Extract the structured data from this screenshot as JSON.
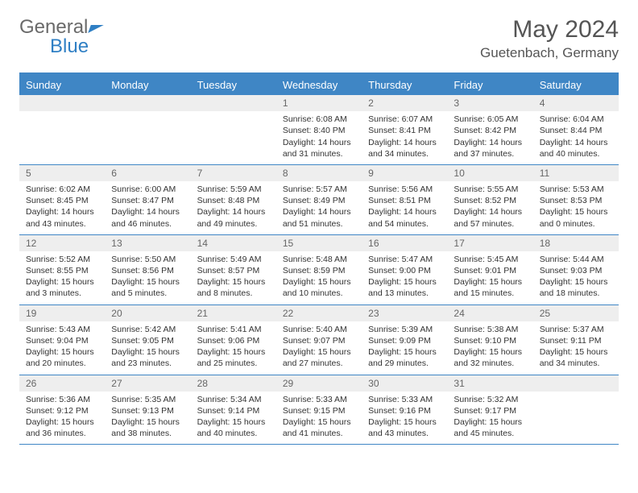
{
  "logo": {
    "part1": "General",
    "part2": "Blue"
  },
  "title": "May 2024",
  "location": "Guetenbach, Germany",
  "dayNames": [
    "Sunday",
    "Monday",
    "Tuesday",
    "Wednesday",
    "Thursday",
    "Friday",
    "Saturday"
  ],
  "style": {
    "accent": "#3f86c5",
    "numBg": "#eeeeee",
    "text": "#333333",
    "columns": 7,
    "cell_fontsize": 10.5,
    "header_fontsize": 13
  },
  "weeks": [
    [
      {
        "n": "",
        "empty": true
      },
      {
        "n": "",
        "empty": true
      },
      {
        "n": "",
        "empty": true
      },
      {
        "n": "1",
        "sunrise": "Sunrise: 6:08 AM",
        "sunset": "Sunset: 8:40 PM",
        "day1": "Daylight: 14 hours",
        "day2": "and 31 minutes."
      },
      {
        "n": "2",
        "sunrise": "Sunrise: 6:07 AM",
        "sunset": "Sunset: 8:41 PM",
        "day1": "Daylight: 14 hours",
        "day2": "and 34 minutes."
      },
      {
        "n": "3",
        "sunrise": "Sunrise: 6:05 AM",
        "sunset": "Sunset: 8:42 PM",
        "day1": "Daylight: 14 hours",
        "day2": "and 37 minutes."
      },
      {
        "n": "4",
        "sunrise": "Sunrise: 6:04 AM",
        "sunset": "Sunset: 8:44 PM",
        "day1": "Daylight: 14 hours",
        "day2": "and 40 minutes."
      }
    ],
    [
      {
        "n": "5",
        "sunrise": "Sunrise: 6:02 AM",
        "sunset": "Sunset: 8:45 PM",
        "day1": "Daylight: 14 hours",
        "day2": "and 43 minutes."
      },
      {
        "n": "6",
        "sunrise": "Sunrise: 6:00 AM",
        "sunset": "Sunset: 8:47 PM",
        "day1": "Daylight: 14 hours",
        "day2": "and 46 minutes."
      },
      {
        "n": "7",
        "sunrise": "Sunrise: 5:59 AM",
        "sunset": "Sunset: 8:48 PM",
        "day1": "Daylight: 14 hours",
        "day2": "and 49 minutes."
      },
      {
        "n": "8",
        "sunrise": "Sunrise: 5:57 AM",
        "sunset": "Sunset: 8:49 PM",
        "day1": "Daylight: 14 hours",
        "day2": "and 51 minutes."
      },
      {
        "n": "9",
        "sunrise": "Sunrise: 5:56 AM",
        "sunset": "Sunset: 8:51 PM",
        "day1": "Daylight: 14 hours",
        "day2": "and 54 minutes."
      },
      {
        "n": "10",
        "sunrise": "Sunrise: 5:55 AM",
        "sunset": "Sunset: 8:52 PM",
        "day1": "Daylight: 14 hours",
        "day2": "and 57 minutes."
      },
      {
        "n": "11",
        "sunrise": "Sunrise: 5:53 AM",
        "sunset": "Sunset: 8:53 PM",
        "day1": "Daylight: 15 hours",
        "day2": "and 0 minutes."
      }
    ],
    [
      {
        "n": "12",
        "sunrise": "Sunrise: 5:52 AM",
        "sunset": "Sunset: 8:55 PM",
        "day1": "Daylight: 15 hours",
        "day2": "and 3 minutes."
      },
      {
        "n": "13",
        "sunrise": "Sunrise: 5:50 AM",
        "sunset": "Sunset: 8:56 PM",
        "day1": "Daylight: 15 hours",
        "day2": "and 5 minutes."
      },
      {
        "n": "14",
        "sunrise": "Sunrise: 5:49 AM",
        "sunset": "Sunset: 8:57 PM",
        "day1": "Daylight: 15 hours",
        "day2": "and 8 minutes."
      },
      {
        "n": "15",
        "sunrise": "Sunrise: 5:48 AM",
        "sunset": "Sunset: 8:59 PM",
        "day1": "Daylight: 15 hours",
        "day2": "and 10 minutes."
      },
      {
        "n": "16",
        "sunrise": "Sunrise: 5:47 AM",
        "sunset": "Sunset: 9:00 PM",
        "day1": "Daylight: 15 hours",
        "day2": "and 13 minutes."
      },
      {
        "n": "17",
        "sunrise": "Sunrise: 5:45 AM",
        "sunset": "Sunset: 9:01 PM",
        "day1": "Daylight: 15 hours",
        "day2": "and 15 minutes."
      },
      {
        "n": "18",
        "sunrise": "Sunrise: 5:44 AM",
        "sunset": "Sunset: 9:03 PM",
        "day1": "Daylight: 15 hours",
        "day2": "and 18 minutes."
      }
    ],
    [
      {
        "n": "19",
        "sunrise": "Sunrise: 5:43 AM",
        "sunset": "Sunset: 9:04 PM",
        "day1": "Daylight: 15 hours",
        "day2": "and 20 minutes."
      },
      {
        "n": "20",
        "sunrise": "Sunrise: 5:42 AM",
        "sunset": "Sunset: 9:05 PM",
        "day1": "Daylight: 15 hours",
        "day2": "and 23 minutes."
      },
      {
        "n": "21",
        "sunrise": "Sunrise: 5:41 AM",
        "sunset": "Sunset: 9:06 PM",
        "day1": "Daylight: 15 hours",
        "day2": "and 25 minutes."
      },
      {
        "n": "22",
        "sunrise": "Sunrise: 5:40 AM",
        "sunset": "Sunset: 9:07 PM",
        "day1": "Daylight: 15 hours",
        "day2": "and 27 minutes."
      },
      {
        "n": "23",
        "sunrise": "Sunrise: 5:39 AM",
        "sunset": "Sunset: 9:09 PM",
        "day1": "Daylight: 15 hours",
        "day2": "and 29 minutes."
      },
      {
        "n": "24",
        "sunrise": "Sunrise: 5:38 AM",
        "sunset": "Sunset: 9:10 PM",
        "day1": "Daylight: 15 hours",
        "day2": "and 32 minutes."
      },
      {
        "n": "25",
        "sunrise": "Sunrise: 5:37 AM",
        "sunset": "Sunset: 9:11 PM",
        "day1": "Daylight: 15 hours",
        "day2": "and 34 minutes."
      }
    ],
    [
      {
        "n": "26",
        "sunrise": "Sunrise: 5:36 AM",
        "sunset": "Sunset: 9:12 PM",
        "day1": "Daylight: 15 hours",
        "day2": "and 36 minutes."
      },
      {
        "n": "27",
        "sunrise": "Sunrise: 5:35 AM",
        "sunset": "Sunset: 9:13 PM",
        "day1": "Daylight: 15 hours",
        "day2": "and 38 minutes."
      },
      {
        "n": "28",
        "sunrise": "Sunrise: 5:34 AM",
        "sunset": "Sunset: 9:14 PM",
        "day1": "Daylight: 15 hours",
        "day2": "and 40 minutes."
      },
      {
        "n": "29",
        "sunrise": "Sunrise: 5:33 AM",
        "sunset": "Sunset: 9:15 PM",
        "day1": "Daylight: 15 hours",
        "day2": "and 41 minutes."
      },
      {
        "n": "30",
        "sunrise": "Sunrise: 5:33 AM",
        "sunset": "Sunset: 9:16 PM",
        "day1": "Daylight: 15 hours",
        "day2": "and 43 minutes."
      },
      {
        "n": "31",
        "sunrise": "Sunrise: 5:32 AM",
        "sunset": "Sunset: 9:17 PM",
        "day1": "Daylight: 15 hours",
        "day2": "and 45 minutes."
      },
      {
        "n": "",
        "empty": true
      }
    ]
  ]
}
